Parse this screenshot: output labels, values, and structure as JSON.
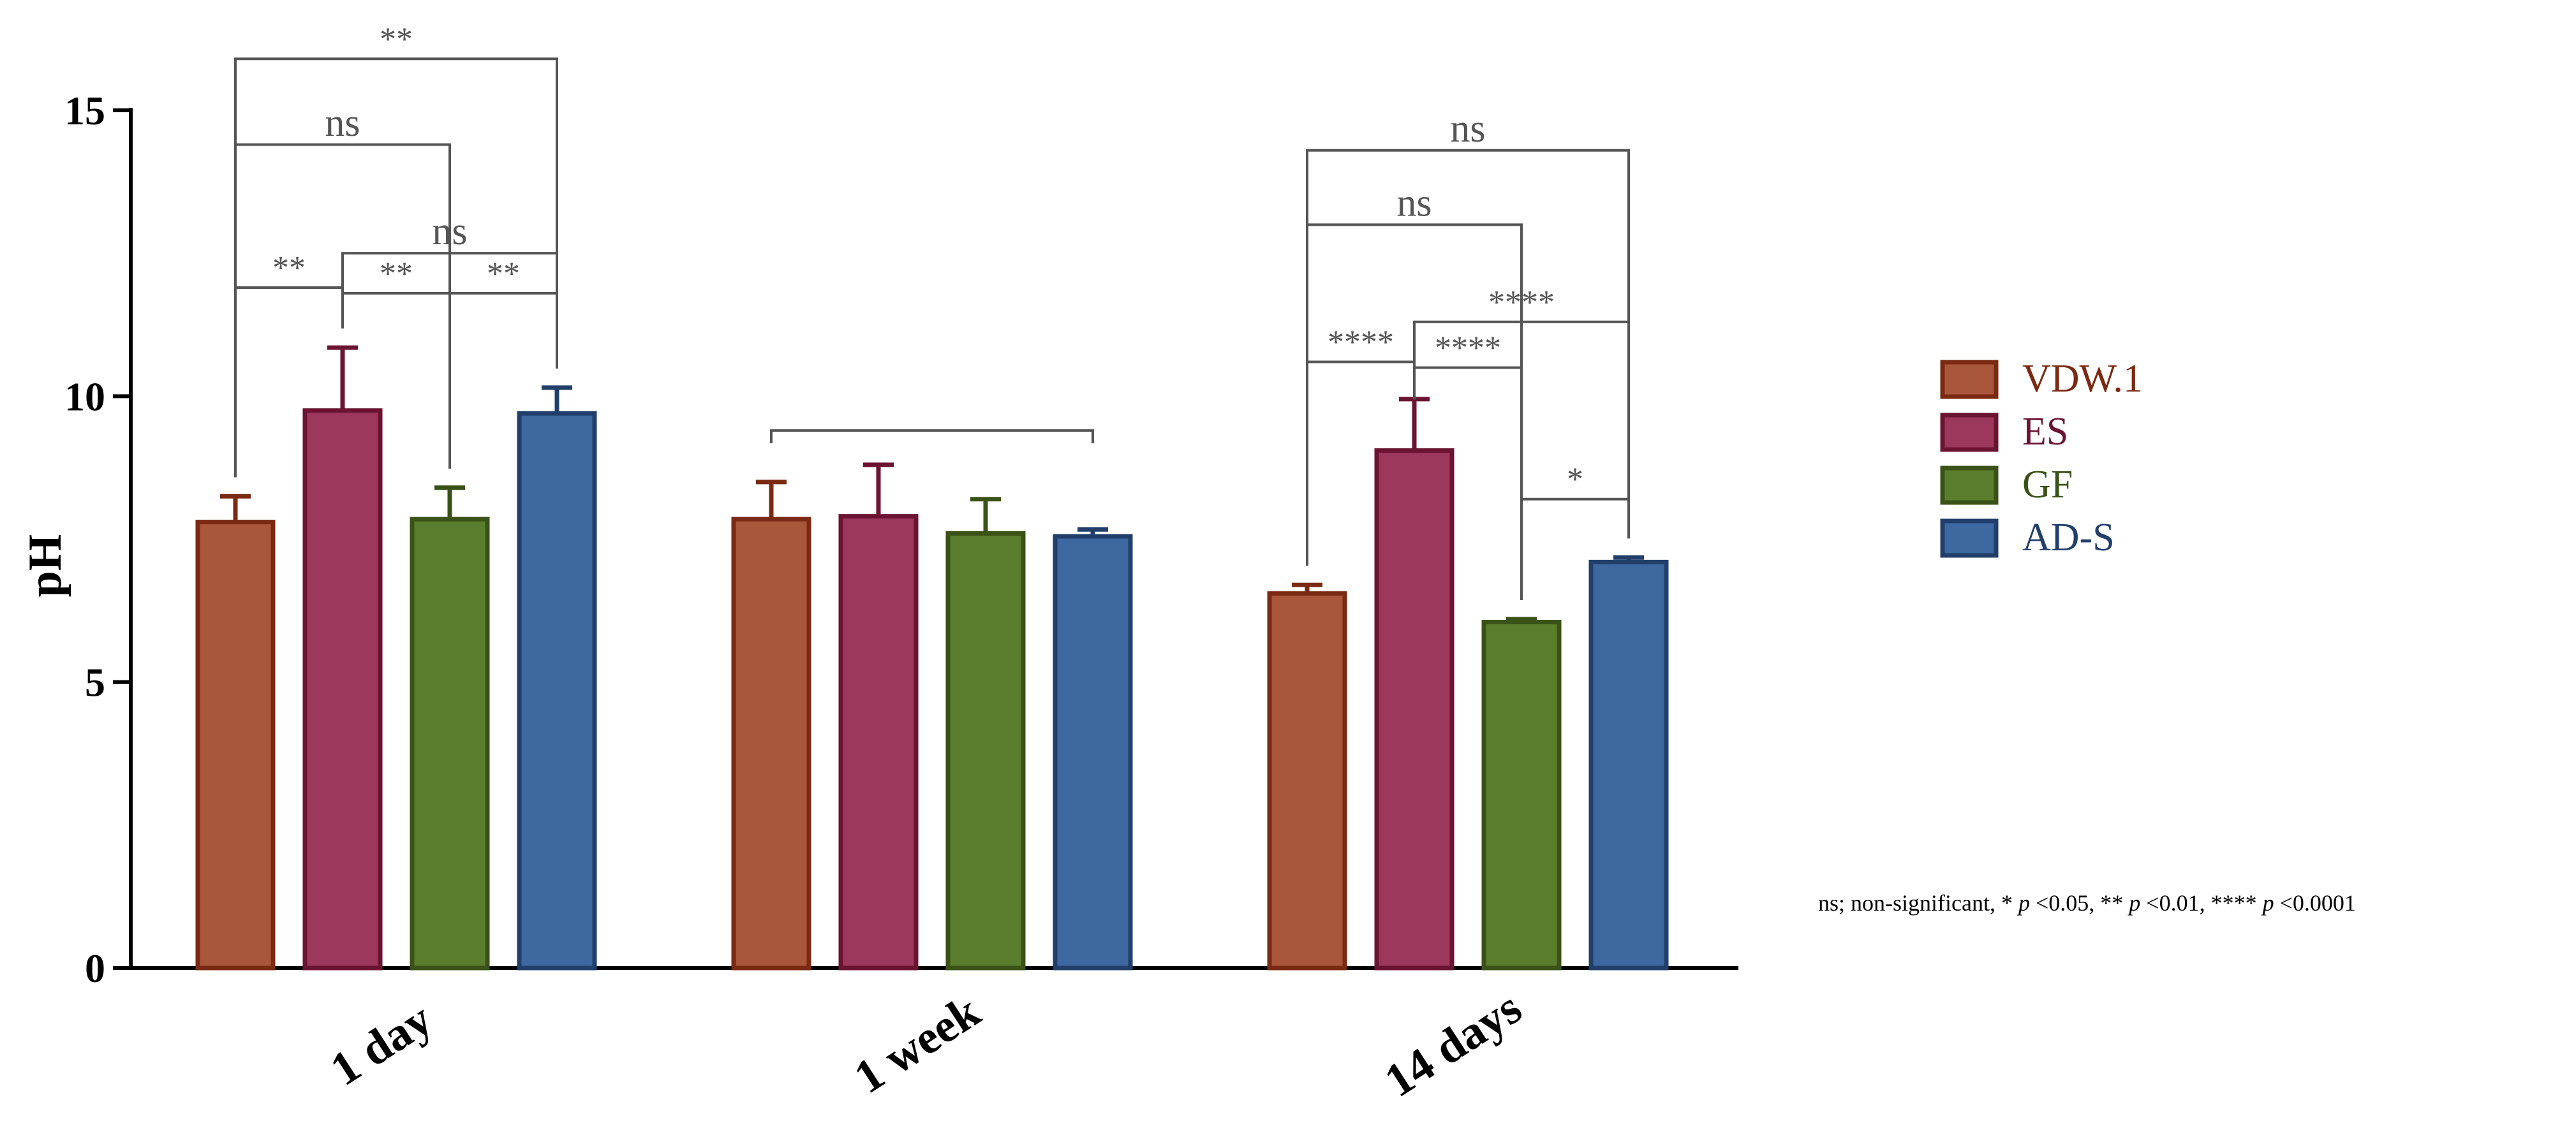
{
  "chart_data": {
    "type": "bar",
    "ylabel": "pH",
    "xlabel": "",
    "ylim": [
      0,
      15
    ],
    "yticks": [
      0,
      5,
      10,
      15
    ],
    "categories": [
      "1 day",
      "1 week",
      "14 days"
    ],
    "series": [
      {
        "name": "VDW.1",
        "color": "#a9573b",
        "stroke": "#7a2a12",
        "values": [
          7.8,
          7.85,
          6.55
        ],
        "errors": [
          0.45,
          0.65,
          0.15
        ]
      },
      {
        "name": "ES",
        "color": "#9c385c",
        "stroke": "#6b1431",
        "values": [
          9.75,
          7.9,
          9.05
        ],
        "errors": [
          1.1,
          0.9,
          0.9
        ]
      },
      {
        "name": "GF",
        "color": "#5b7d2e",
        "stroke": "#3a5217",
        "values": [
          7.85,
          7.6,
          6.05
        ],
        "errors": [
          0.55,
          0.6,
          0.05
        ]
      },
      {
        "name": "AD-S",
        "color": "#3d68a0",
        "stroke": "#213f6a",
        "values": [
          9.7,
          7.55,
          7.1
        ],
        "errors": [
          0.45,
          0.12,
          0.08
        ]
      }
    ],
    "significance": [
      {
        "group": 0,
        "from": 0,
        "to": 3,
        "level": 15.9,
        "label": "**"
      },
      {
        "group": 0,
        "from": 0,
        "to": 2,
        "level": 14.4,
        "label": "ns"
      },
      {
        "group": 0,
        "from": 1,
        "to": 3,
        "level": 12.5,
        "label": "ns"
      },
      {
        "group": 0,
        "from": 0,
        "to": 1,
        "level": 11.9,
        "label": "**"
      },
      {
        "group": 0,
        "from": 1,
        "to": 2,
        "level": 11.8,
        "label": "**"
      },
      {
        "group": 0,
        "from": 2,
        "to": 3,
        "level": 11.8,
        "label": "**"
      },
      {
        "group": 1,
        "from": 0,
        "to": 3,
        "level": 9.4,
        "label": ""
      },
      {
        "group": 2,
        "from": 0,
        "to": 3,
        "level": 14.3,
        "label": "ns"
      },
      {
        "group": 2,
        "from": 0,
        "to": 2,
        "level": 13.0,
        "label": "ns"
      },
      {
        "group": 2,
        "from": 1,
        "to": 3,
        "level": 11.3,
        "label": "****"
      },
      {
        "group": 2,
        "from": 0,
        "to": 1,
        "level": 10.6,
        "label": "****"
      },
      {
        "group": 2,
        "from": 1,
        "to": 2,
        "level": 10.5,
        "label": "****"
      },
      {
        "group": 2,
        "from": 2,
        "to": 3,
        "level": 8.2,
        "label": "*"
      }
    ],
    "legend_position": "right",
    "grid": false
  },
  "footnote": "ns; non-significant, * p <0.05, ** p <0.01,  **** p <0.0001"
}
